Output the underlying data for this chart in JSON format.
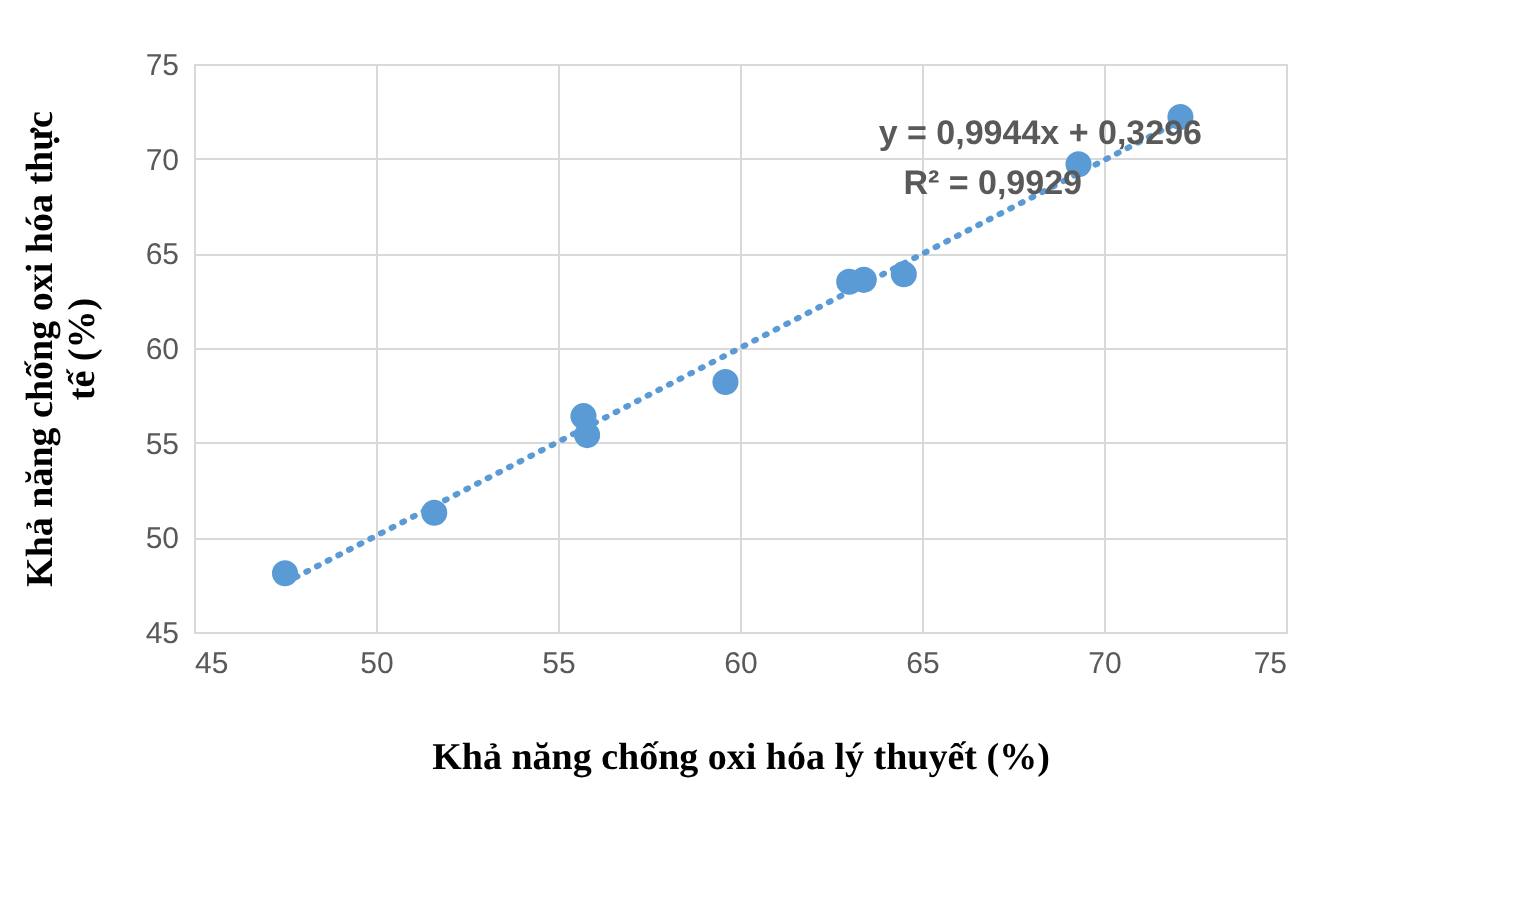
{
  "chart_data": {
    "type": "scatter",
    "xlabel": "Khả năng chống oxi hóa lý thuyết (%)",
    "ylabel": "Khả năng chống oxi hóa thực tế (%)",
    "x": [
      47.5,
      51.6,
      55.7,
      55.8,
      59.6,
      63.0,
      63.4,
      64.5,
      69.3,
      72.1
    ],
    "series": [
      {
        "color": "#5b9bd5",
        "values": [
          48.1,
          51.3,
          56.4,
          55.4,
          58.2,
          63.5,
          63.6,
          63.9,
          69.7,
          72.2
        ]
      },
      {
        "type": "line",
        "color": "#5b9bd5",
        "line_style": "dotted",
        "marker": "none",
        "x": [
          47.5,
          72.1
        ],
        "values": [
          47.6,
          72.0
        ]
      }
    ],
    "annotations": [
      "y = 0,9944x + 0,3296",
      "R² = 0,9929"
    ],
    "xlim": [
      45,
      75
    ],
    "xticks": [
      45,
      50,
      55,
      60,
      65,
      70,
      75
    ],
    "ylim": [
      45,
      75
    ],
    "yticks": [
      45,
      50,
      55,
      60,
      65,
      70,
      75
    ],
    "grid": true,
    "marker": "circle"
  }
}
